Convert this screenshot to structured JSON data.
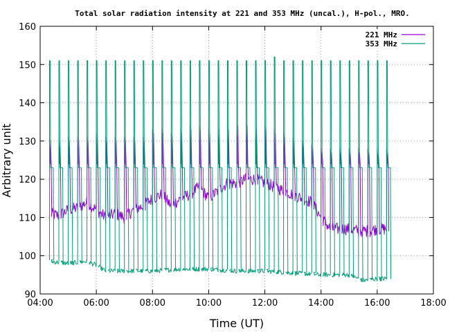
{
  "chart_data": {
    "type": "line",
    "title": "Total solar radiation intensity at 221 and 353 MHz (uncal.), H-pol., MRO.",
    "xlabel": "Time (UT)",
    "ylabel": "Arbitrary unit",
    "xlim": [
      "04:00",
      "18:00"
    ],
    "ylim": [
      90,
      160
    ],
    "x_ticks": [
      "04:00",
      "06:00",
      "08:00",
      "10:00",
      "12:00",
      "14:00",
      "16:00",
      "18:00"
    ],
    "y_ticks": [
      90,
      100,
      110,
      120,
      130,
      140,
      150,
      160
    ],
    "grid": true,
    "legend_position": "top-right",
    "series": [
      {
        "name": "221 MHz",
        "color": "#9400d3",
        "baseline_points": [
          [
            "04:20",
            111
          ],
          [
            "04:40",
            110.5
          ],
          [
            "05:00",
            112
          ],
          [
            "05:20",
            112.5
          ],
          [
            "05:40",
            114
          ],
          [
            "06:00",
            112
          ],
          [
            "06:20",
            110
          ],
          [
            "06:40",
            111
          ],
          [
            "07:00",
            110
          ],
          [
            "07:20",
            112
          ],
          [
            "07:40",
            113
          ],
          [
            "08:00",
            115
          ],
          [
            "08:20",
            116
          ],
          [
            "08:40",
            113
          ],
          [
            "09:00",
            115
          ],
          [
            "09:20",
            116
          ],
          [
            "09:40",
            118
          ],
          [
            "10:00",
            115
          ],
          [
            "10:20",
            117
          ],
          [
            "10:40",
            119
          ],
          [
            "11:00",
            119
          ],
          [
            "11:20",
            120
          ],
          [
            "11:40",
            120
          ],
          [
            "12:00",
            119
          ],
          [
            "12:20",
            118
          ],
          [
            "12:40",
            117
          ],
          [
            "13:00",
            116
          ],
          [
            "13:20",
            115
          ],
          [
            "13:40",
            114
          ],
          [
            "14:00",
            110
          ],
          [
            "14:20",
            107
          ],
          [
            "14:40",
            107
          ],
          [
            "15:00",
            107
          ],
          [
            "15:20",
            106.5
          ],
          [
            "15:40",
            106.5
          ],
          [
            "16:00",
            107
          ],
          [
            "16:20",
            107
          ]
        ],
        "calibration_spikes": [
          [
            "04:20",
            131
          ],
          [
            "04:40",
            131
          ],
          [
            "05:00",
            131
          ],
          [
            "05:20",
            131
          ],
          [
            "05:40",
            131
          ],
          [
            "06:00",
            132
          ],
          [
            "06:20",
            131
          ],
          [
            "06:40",
            131
          ],
          [
            "07:00",
            131
          ],
          [
            "07:20",
            131
          ],
          [
            "07:40",
            131
          ],
          [
            "08:00",
            133
          ],
          [
            "08:20",
            133
          ],
          [
            "08:40",
            132
          ],
          [
            "09:00",
            133
          ],
          [
            "09:20",
            134
          ],
          [
            "09:40",
            134
          ],
          [
            "10:00",
            133
          ],
          [
            "10:20",
            134
          ],
          [
            "10:40",
            134
          ],
          [
            "11:00",
            135
          ],
          [
            "11:20",
            135
          ],
          [
            "11:40",
            134
          ],
          [
            "12:00",
            134
          ],
          [
            "12:20",
            133
          ],
          [
            "12:40",
            132
          ],
          [
            "13:00",
            131
          ],
          [
            "13:20",
            130
          ],
          [
            "13:40",
            129
          ],
          [
            "14:00",
            128
          ],
          [
            "14:20",
            128
          ],
          [
            "14:40",
            128
          ],
          [
            "15:00",
            128
          ],
          [
            "15:20",
            128
          ],
          [
            "15:40",
            128
          ],
          [
            "16:00",
            128
          ],
          [
            "16:20",
            128
          ]
        ],
        "spike_low": 124
      },
      {
        "name": "353 MHz",
        "color": "#009b77",
        "baseline_points": [
          [
            "04:20",
            98.5
          ],
          [
            "05:00",
            98
          ],
          [
            "05:40",
            98.5
          ],
          [
            "06:00",
            97.5
          ],
          [
            "06:20",
            96
          ],
          [
            "07:00",
            96
          ],
          [
            "08:00",
            96
          ],
          [
            "09:00",
            96.5
          ],
          [
            "10:00",
            96.5
          ],
          [
            "11:00",
            96
          ],
          [
            "12:00",
            96
          ],
          [
            "13:00",
            95.5
          ],
          [
            "14:00",
            95
          ],
          [
            "15:00",
            95
          ],
          [
            "15:30",
            93.5
          ],
          [
            "16:00",
            94
          ],
          [
            "16:20",
            94
          ]
        ],
        "calibration_spikes": [
          [
            "04:20",
            151
          ],
          [
            "04:40",
            151
          ],
          [
            "05:00",
            151
          ],
          [
            "05:20",
            151
          ],
          [
            "05:40",
            151
          ],
          [
            "06:00",
            151
          ],
          [
            "06:20",
            151
          ],
          [
            "06:40",
            151
          ],
          [
            "07:00",
            151
          ],
          [
            "07:20",
            151
          ],
          [
            "07:40",
            151
          ],
          [
            "08:00",
            151
          ],
          [
            "08:20",
            151
          ],
          [
            "08:40",
            151
          ],
          [
            "09:00",
            151
          ],
          [
            "09:20",
            151
          ],
          [
            "09:40",
            151
          ],
          [
            "10:00",
            151
          ],
          [
            "10:20",
            151
          ],
          [
            "10:40",
            151
          ],
          [
            "11:00",
            151
          ],
          [
            "11:20",
            151
          ],
          [
            "11:40",
            151
          ],
          [
            "12:00",
            151
          ],
          [
            "12:20",
            152
          ],
          [
            "12:40",
            151
          ],
          [
            "13:00",
            151
          ],
          [
            "13:20",
            151
          ],
          [
            "13:40",
            151
          ],
          [
            "14:00",
            151
          ],
          [
            "14:20",
            151
          ],
          [
            "14:40",
            151
          ],
          [
            "15:00",
            151
          ],
          [
            "15:20",
            151
          ],
          [
            "15:40",
            151
          ],
          [
            "16:00",
            151
          ],
          [
            "16:20",
            151
          ]
        ],
        "spike_high_plateau": 123
      }
    ]
  }
}
